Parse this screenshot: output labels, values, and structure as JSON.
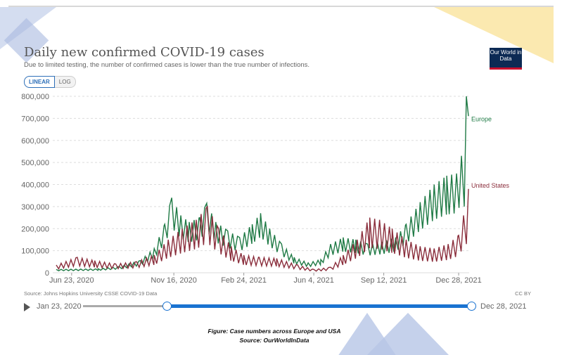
{
  "header": {
    "title": "Daily new confirmed COVID-19 cases",
    "subtitle": "Due to limited testing, the number of confirmed cases is lower than the true number of infections.",
    "logo": "Our World in Data"
  },
  "toggle": {
    "linear": "LINEAR",
    "log": "LOG"
  },
  "footer": {
    "source": "Source: Johns Hopkins University CSSE COVID-19 Data",
    "license": "CC BY"
  },
  "timeline": {
    "start": "Jan 23, 2020",
    "end": "Dec 28, 2021"
  },
  "caption": {
    "line1": "Figure: Case numbers across Europe and USA",
    "line2": "Source: OurWorldInData"
  },
  "chart_data": {
    "type": "line",
    "title": "Daily new confirmed COVID-19 cases",
    "x_unit": "days since Jun 1, 2020",
    "xlim": [
      -5,
      590
    ],
    "ylim": [
      0,
      800000
    ],
    "yticks": [
      0,
      100000,
      200000,
      300000,
      400000,
      500000,
      600000,
      700000,
      800000
    ],
    "ytick_labels": [
      "0",
      "100,000",
      "200,000",
      "300,000",
      "400,000",
      "500,000",
      "600,000",
      "700,000",
      "800,000"
    ],
    "xticks": [
      22,
      168,
      268,
      368,
      468,
      575
    ],
    "xtick_labels": [
      "Jun 23, 2020",
      "Nov 16, 2020",
      "Feb 24, 2021",
      "Jun 4, 2021",
      "Sep 12, 2021",
      "Dec 28, 2021"
    ],
    "series": [
      {
        "name": "Europe",
        "color": "#1f7a45",
        "points": [
          [
            0,
            15000
          ],
          [
            60,
            18000
          ],
          [
            90,
            28000
          ],
          [
            120,
            55000
          ],
          [
            140,
            110000
          ],
          [
            155,
            220000
          ],
          [
            165,
            340000
          ],
          [
            178,
            260000
          ],
          [
            190,
            230000
          ],
          [
            205,
            250000
          ],
          [
            215,
            315000
          ],
          [
            228,
            230000
          ],
          [
            245,
            190000
          ],
          [
            262,
            160000
          ],
          [
            280,
            220000
          ],
          [
            292,
            270000
          ],
          [
            305,
            200000
          ],
          [
            322,
            130000
          ],
          [
            340,
            70000
          ],
          [
            360,
            45000
          ],
          [
            378,
            60000
          ],
          [
            392,
            130000
          ],
          [
            410,
            160000
          ],
          [
            428,
            150000
          ],
          [
            445,
            130000
          ],
          [
            465,
            140000
          ],
          [
            485,
            160000
          ],
          [
            500,
            220000
          ],
          [
            520,
            320000
          ],
          [
            540,
            400000
          ],
          [
            558,
            440000
          ],
          [
            572,
            450000
          ],
          [
            579,
            530000
          ],
          [
            583,
            300000
          ],
          [
            586,
            800000
          ],
          [
            589,
            710000
          ]
        ]
      },
      {
        "name": "United States",
        "color": "#8a2d3b",
        "points": [
          [
            0,
            35000
          ],
          [
            30,
            70000
          ],
          [
            55,
            55000
          ],
          [
            85,
            40000
          ],
          [
            115,
            50000
          ],
          [
            140,
            80000
          ],
          [
            160,
            150000
          ],
          [
            180,
            200000
          ],
          [
            200,
            240000
          ],
          [
            216,
            300000
          ],
          [
            232,
            200000
          ],
          [
            250,
            120000
          ],
          [
            268,
            80000
          ],
          [
            290,
            70000
          ],
          [
            315,
            65000
          ],
          [
            345,
            35000
          ],
          [
            368,
            15000
          ],
          [
            392,
            25000
          ],
          [
            410,
            80000
          ],
          [
            430,
            150000
          ],
          [
            448,
            250000
          ],
          [
            462,
            240000
          ],
          [
            480,
            200000
          ],
          [
            500,
            150000
          ],
          [
            520,
            120000
          ],
          [
            540,
            110000
          ],
          [
            560,
            130000
          ],
          [
            575,
            170000
          ],
          [
            582,
            260000
          ],
          [
            586,
            130000
          ],
          [
            589,
            380000
          ]
        ]
      }
    ]
  }
}
